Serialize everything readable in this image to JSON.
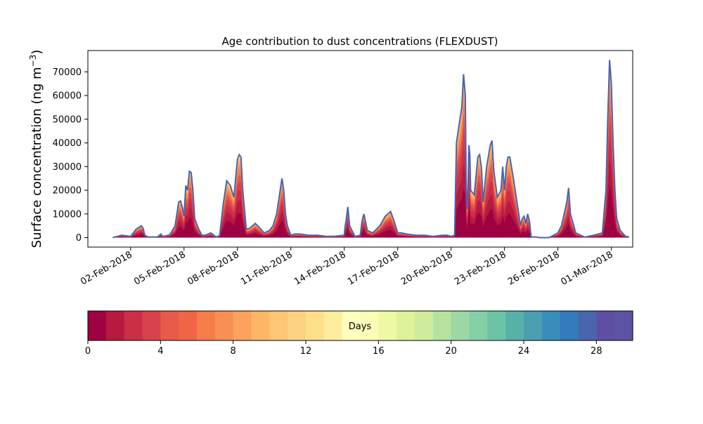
{
  "chart_data": {
    "type": "area",
    "title": "Age contribution to dust concentrations (FLEXDUST)",
    "xlabel": "",
    "ylabel": "Surface concentration (ng m",
    "ylabel_exponent": "−3",
    "ylabel_close": ")",
    "x_tick_labels": [
      "02-Feb-2018",
      "05-Feb-2018",
      "08-Feb-2018",
      "11-Feb-2018",
      "14-Feb-2018",
      "17-Feb-2018",
      "20-Feb-2018",
      "23-Feb-2018",
      "26-Feb-2018",
      "01-Mar-2018"
    ],
    "x_tick_days": [
      1,
      4,
      7,
      10,
      13,
      16,
      19,
      22,
      25,
      28
    ],
    "x_range_days": [
      -1.4,
      29.2
    ],
    "y_ticks": [
      0,
      10000,
      20000,
      30000,
      40000,
      50000,
      60000,
      70000
    ],
    "y_range": [
      -4000,
      79000
    ],
    "grid": false,
    "series_note_x_unit": "days",
    "total": {
      "x": [
        0,
        0.5,
        1,
        1.3,
        1.6,
        1.7,
        1.8,
        2,
        2.2,
        2.5,
        2.7,
        2.8,
        3,
        3.2,
        3.5,
        3.6,
        3.7,
        3.8,
        3.9,
        4,
        4.1,
        4.2,
        4.3,
        4.4,
        4.5,
        4.6,
        4.8,
        5,
        5.2,
        5.5,
        5.8,
        6,
        6.2,
        6.4,
        6.6,
        6.8,
        7,
        7.1,
        7.2,
        7.3,
        7.5,
        7.7,
        8,
        8.2,
        8.5,
        8.8,
        9,
        9.2,
        9.5,
        9.6,
        9.7,
        9.8,
        10,
        10.2,
        10.5,
        11,
        11.5,
        12,
        12.5,
        13,
        13.05,
        13.1,
        13.2,
        13.3,
        13.6,
        13.9,
        14,
        14.1,
        14.3,
        14.6,
        15,
        15.3,
        15.6,
        15.8,
        16,
        16.2,
        16.5,
        17,
        17.5,
        18,
        18.5,
        18.8,
        19,
        19.2,
        19.3,
        19.4,
        19.5,
        19.6,
        19.7,
        19.8,
        19.85,
        19.9,
        19.95,
        20,
        20.05,
        20.1,
        20.3,
        20.5,
        20.6,
        20.7,
        20.8,
        21,
        21.2,
        21.3,
        21.4,
        21.6,
        21.8,
        21.9,
        22,
        22.1,
        22.2,
        22.3,
        22.5,
        22.8,
        22.9,
        23,
        23.1,
        23.2,
        23.3,
        23.4,
        23.5,
        23.7,
        24,
        24.5,
        25,
        25.2,
        25.5,
        25.6,
        25.7,
        26,
        26.5,
        27,
        27.5,
        27.7,
        27.8,
        27.9,
        28,
        28.1,
        28.2,
        28.3,
        28.5,
        28.8,
        29
      ],
      "y": [
        0,
        1000,
        500,
        3500,
        5000,
        4000,
        1000,
        200,
        300,
        200,
        1500,
        500,
        800,
        1200,
        5000,
        10000,
        15000,
        15500,
        13000,
        9000,
        22000,
        20000,
        28000,
        27500,
        20000,
        8000,
        4000,
        1000,
        1000,
        2000,
        300,
        800,
        14000,
        24000,
        22000,
        17000,
        33000,
        35000,
        34000,
        20000,
        3500,
        4000,
        6000,
        4500,
        2000,
        3000,
        5000,
        10000,
        25000,
        20000,
        10000,
        5000,
        1000,
        1500,
        1500,
        1000,
        1000,
        500,
        600,
        1000,
        5000,
        7000,
        13000,
        5000,
        500,
        1000,
        7000,
        10000,
        3000,
        2000,
        5000,
        9000,
        11000,
        7000,
        2000,
        2000,
        1500,
        1000,
        1000,
        500,
        1000,
        1000,
        500,
        1000,
        40000,
        45000,
        50000,
        55000,
        69000,
        60000,
        20000,
        12000,
        22000,
        39000,
        35000,
        20000,
        18000,
        34000,
        35000,
        30000,
        15000,
        30000,
        39000,
        41000,
        28000,
        17000,
        20000,
        30000,
        20000,
        30000,
        34000,
        34000,
        25000,
        10000,
        5000,
        8000,
        9000,
        6000,
        10000,
        7000,
        200,
        300,
        0,
        0,
        2000,
        5000,
        15000,
        21000,
        10000,
        2000,
        200,
        1000,
        2000,
        20000,
        50000,
        75000,
        65000,
        40000,
        20000,
        8000,
        3000,
        500,
        300
      ]
    },
    "colorbar": {
      "label": "Days",
      "range": [
        0,
        30
      ],
      "tick_labels": [
        "0",
        "4",
        "8",
        "12",
        "16",
        "20",
        "24",
        "28"
      ],
      "colors": [
        "#9e0142",
        "#b8193f",
        "#cb2f48",
        "#d8424d",
        "#e75a4a",
        "#ef6545",
        "#f67c4a",
        "#f88f55",
        "#fba25e",
        "#fdb666",
        "#fec575",
        "#fed283",
        "#fee08b",
        "#feec9f",
        "#ffffbe",
        "#fbfdb7",
        "#eef8a5",
        "#dff19b",
        "#cfec9d",
        "#b6e2a1",
        "#9dd7a4",
        "#85cfa5",
        "#6dc4a5",
        "#58b1a9",
        "#4d9db0",
        "#388dbb",
        "#337bbc",
        "#4965ae",
        "#5e4fa2",
        "#5b53a4"
      ]
    }
  }
}
